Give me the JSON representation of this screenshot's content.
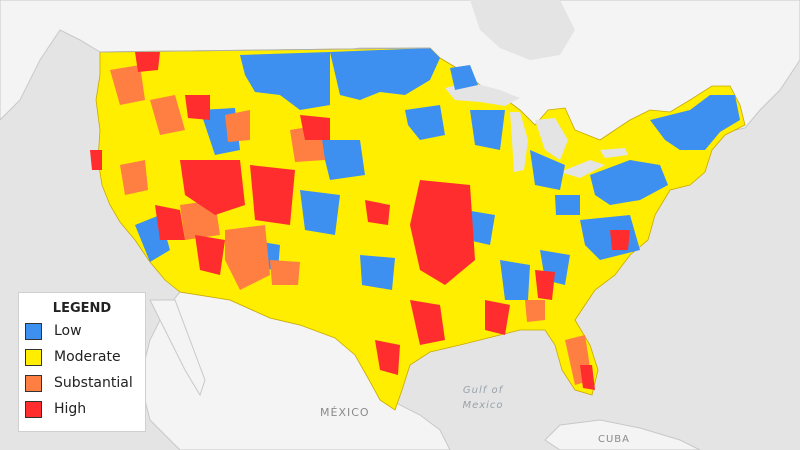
{
  "legend": {
    "title": "LEGEND",
    "items": [
      {
        "label": "Low",
        "color": "#3d8ff0"
      },
      {
        "label": "Moderate",
        "color": "#ffee00"
      },
      {
        "label": "Substantial",
        "color": "#ff7f42"
      },
      {
        "label": "High",
        "color": "#ff2d2d"
      }
    ]
  },
  "labels": {
    "mexico": "MÉXICO",
    "gulf_line1": "Gulf of",
    "gulf_line2": "Mexico",
    "cuba": "CUBA"
  },
  "colors": {
    "water": "#e4e4e4",
    "land": "#f4f4f4",
    "border": "#c8c8c8"
  }
}
